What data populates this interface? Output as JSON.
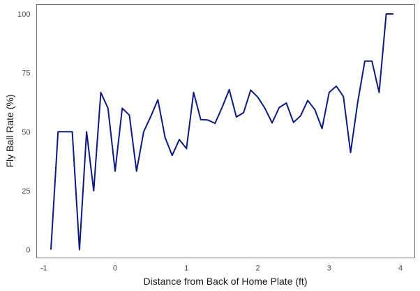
{
  "chart_data": {
    "type": "line",
    "xlabel": "Distance from Back of Home Plate (ft)",
    "ylabel": "Fly Ball Rate (%)",
    "xlim": [
      -1.1,
      4.2
    ],
    "ylim": [
      -3.5,
      104
    ],
    "x_ticks": [
      -1,
      0,
      1,
      2,
      3,
      4
    ],
    "y_ticks": [
      0,
      25,
      50,
      75,
      100
    ],
    "grid": false,
    "legend": "none",
    "line_color": "#0a1a80",
    "series": [
      {
        "x": [
          -0.9,
          -0.8,
          -0.7,
          -0.6,
          -0.5,
          -0.4,
          -0.3,
          -0.2,
          -0.1,
          0.0,
          0.1,
          0.2,
          0.3,
          0.4,
          0.5,
          0.6,
          0.7,
          0.8,
          0.9,
          1.0,
          1.1,
          1.2,
          1.3,
          1.4,
          1.5,
          1.6,
          1.7,
          1.8,
          1.9,
          2.0,
          2.1,
          2.2,
          2.3,
          2.4,
          2.5,
          2.6,
          2.7,
          2.8,
          2.9,
          3.0,
          3.1,
          3.2,
          3.3,
          3.4,
          3.5,
          3.6,
          3.7,
          3.8,
          3.9
        ],
        "values": [
          0,
          50,
          50,
          50,
          0,
          50,
          25,
          66.7,
          60,
          33.3,
          60,
          57.1,
          33.3,
          50,
          56.5,
          63.6,
          47.6,
          40,
          46.7,
          42.9,
          66.7,
          55.2,
          55,
          53.6,
          60.4,
          67.9,
          56.3,
          58.1,
          67.7,
          64.7,
          60,
          53.8,
          60.3,
          62.2,
          54,
          56.8,
          63.3,
          59.4,
          51.4,
          66.7,
          69.4,
          65,
          41.2,
          62.5,
          80,
          80,
          66.7,
          100,
          100
        ]
      }
    ]
  }
}
